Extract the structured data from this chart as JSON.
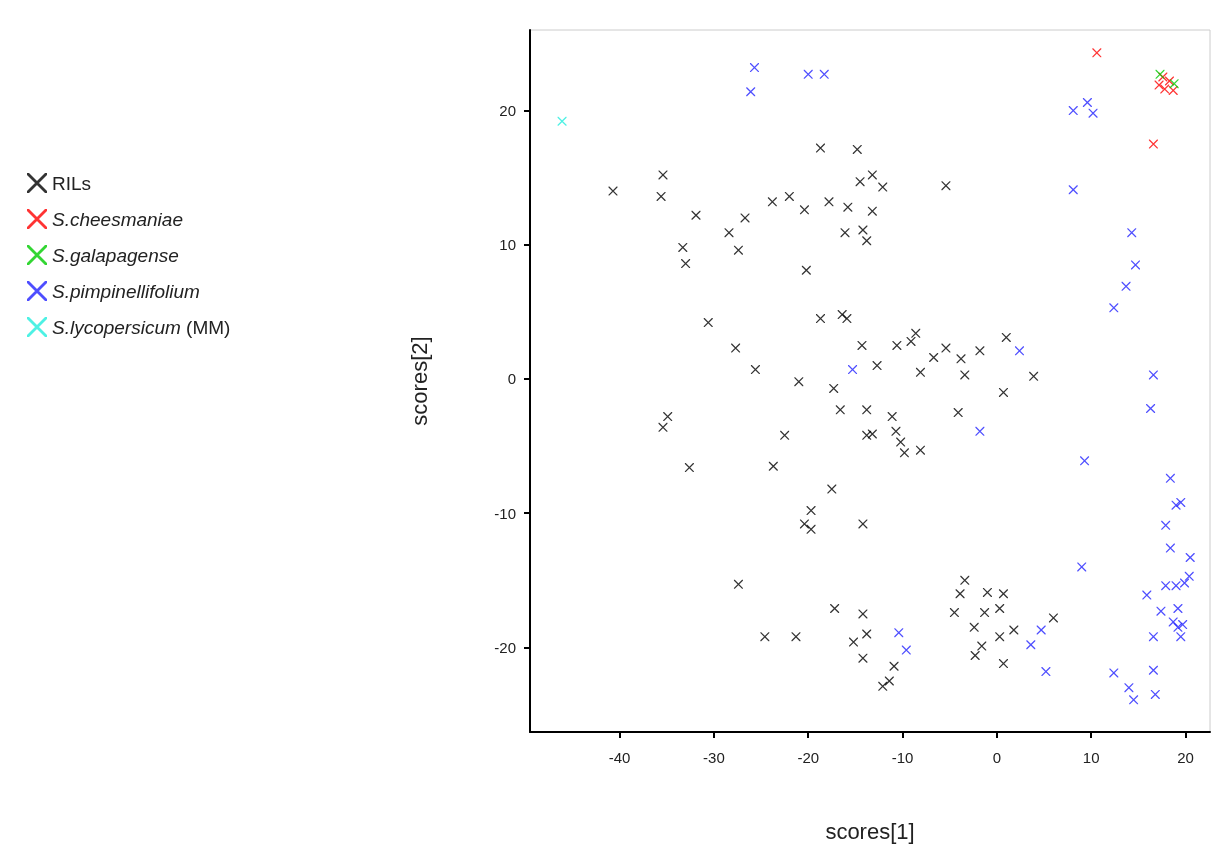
{
  "chart_data": {
    "type": "scatter",
    "xlabel": "scores[1]",
    "ylabel": "scores[2]",
    "xlim": [
      -49.5,
      22.6
    ],
    "ylim": [
      -26.3,
      26.0
    ],
    "xticks": [
      -40,
      -30,
      -20,
      -10,
      0,
      10,
      20
    ],
    "yticks": [
      -20,
      -10,
      0,
      10,
      20
    ],
    "marker": "cross",
    "legend": "left",
    "grid": false,
    "series": [
      {
        "name": "RILs",
        "color": "#000000",
        "x": [
          -40.7,
          -35.4,
          -35.6,
          -31.9,
          -26.7,
          -28.4,
          -27.4,
          -33.3,
          -33.0,
          -23.8,
          -22.0,
          -20.4,
          -17.8,
          -15.8,
          -18.7,
          -14.8,
          -14.5,
          -16.1,
          -14.2,
          -13.8,
          -20.2,
          -30.6,
          -18.7,
          -16.4,
          -15.9,
          -14.3,
          -27.7,
          -25.6,
          -21.0,
          -17.3,
          -34.9,
          -35.4,
          -32.6,
          -22.5,
          -23.7,
          -16.6,
          -13.8,
          -13.8,
          -17.5,
          -19.7,
          -20.4,
          -19.7,
          -14.2,
          -27.4,
          -17.2,
          -14.2,
          -13.8,
          -24.6,
          -21.3,
          -15.2,
          -14.2,
          -13.2,
          -12.1,
          -13.2,
          -5.4,
          -8.6,
          -9.1,
          -10.6,
          -12.7,
          -8.1,
          -6.7,
          -5.4,
          -3.8,
          -3.4,
          -1.8,
          1.0,
          3.9,
          0.7,
          -11.1,
          -13.2,
          -10.7,
          -10.2,
          -9.8,
          -8.1,
          -4.1,
          -3.4,
          -3.9,
          -4.5,
          -1.0,
          0.7,
          -1.3,
          0.3,
          -2.4,
          1.8,
          0.3,
          -1.6,
          -2.3,
          0.7,
          6.0,
          -10.9,
          -12.1,
          -11.4
        ],
        "values": [
          14.0,
          15.2,
          13.6,
          12.2,
          12.0,
          10.9,
          9.6,
          9.8,
          8.6,
          13.2,
          13.6,
          12.6,
          13.2,
          12.8,
          17.2,
          17.1,
          14.7,
          10.9,
          11.1,
          10.3,
          8.1,
          4.2,
          4.5,
          4.8,
          4.5,
          2.5,
          2.3,
          0.7,
          -0.2,
          -0.7,
          -2.8,
          -3.6,
          -6.6,
          -4.2,
          -6.5,
          -2.3,
          -2.3,
          -4.2,
          -8.2,
          -9.8,
          -10.8,
          -11.2,
          -10.8,
          -15.3,
          -17.1,
          -17.5,
          -19.0,
          -19.2,
          -19.2,
          -19.6,
          -20.8,
          15.2,
          14.3,
          12.5,
          14.4,
          3.4,
          2.8,
          2.5,
          1.0,
          0.5,
          1.6,
          2.3,
          1.5,
          0.3,
          2.1,
          3.1,
          0.2,
          -1.0,
          -2.8,
          -4.1,
          -3.9,
          -4.7,
          -5.5,
          -5.3,
          -2.5,
          -15.0,
          -16.0,
          -17.4,
          -15.9,
          -16.0,
          -17.4,
          -17.1,
          -18.5,
          -18.7,
          -19.2,
          -19.9,
          -20.6,
          -21.2,
          -17.8,
          -21.4,
          -22.9,
          -22.5
        ]
      },
      {
        "name": "S.cheesmaniae",
        "color": "#ff0000",
        "x": [
          10.6,
          16.6,
          17.6,
          18.3,
          17.8,
          18.7,
          17.2
        ],
        "values": [
          24.3,
          17.5,
          22.5,
          22.2,
          21.6,
          21.5,
          21.9
        ]
      },
      {
        "name": "S.galapagense",
        "color": "#00cc00",
        "x": [
          17.3,
          18.8
        ],
        "values": [
          22.7,
          22.0
        ]
      },
      {
        "name": "S.pimpinellifolium",
        "color": "#2222ff",
        "x": [
          -25.7,
          -26.1,
          -20.0,
          -18.3,
          -15.3,
          8.1,
          9.6,
          10.2,
          8.1,
          14.3,
          14.7,
          13.7,
          12.4,
          2.4,
          16.6,
          -1.8,
          9.3,
          16.3,
          18.4,
          19.5,
          19.0,
          17.9,
          18.4,
          20.5,
          9.0,
          17.9,
          19.0,
          19.9,
          20.4,
          15.9,
          17.4,
          19.2,
          18.7,
          19.7,
          19.2,
          16.6,
          19.5,
          12.4,
          16.6,
          14.0,
          14.5,
          16.8,
          5.2,
          3.6,
          4.7,
          -10.4,
          -9.6
        ],
        "values": [
          23.2,
          21.4,
          22.7,
          22.7,
          0.7,
          20.0,
          20.6,
          19.8,
          14.1,
          10.9,
          8.5,
          6.9,
          5.3,
          2.1,
          0.3,
          -3.9,
          -6.1,
          -2.2,
          -7.4,
          -9.2,
          -9.4,
          -10.9,
          -12.6,
          -13.3,
          -14.0,
          -15.4,
          -15.4,
          -15.2,
          -14.7,
          -16.1,
          -17.3,
          -17.1,
          -18.1,
          -18.3,
          -18.5,
          -19.2,
          -19.2,
          -21.9,
          -21.7,
          -23.0,
          -23.9,
          -23.5,
          -21.8,
          -19.8,
          -18.7,
          -18.9,
          -20.2
        ]
      },
      {
        "name": "S.lycopersicum (MM)",
        "color": "#22eedd",
        "x": [
          -46.1
        ],
        "values": [
          19.2
        ]
      }
    ]
  }
}
